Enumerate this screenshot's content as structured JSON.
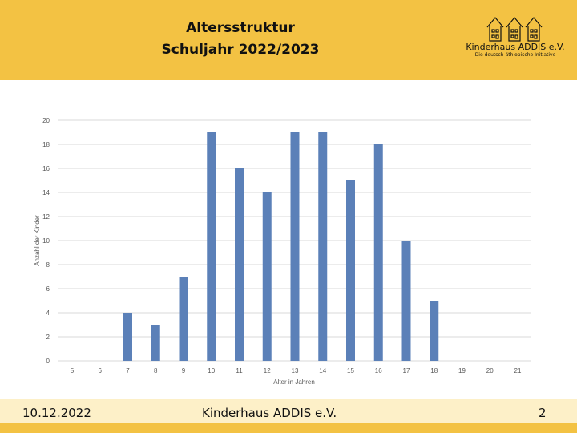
{
  "slide": {
    "title_line1": "Altersstruktur",
    "title_line2": "Schuljahr 2022/2023",
    "date": "10.12.2022",
    "footer_text": "Kinderhaus ADDIS e.V.",
    "page_number": "2"
  },
  "logo": {
    "name": "Kinderhaus ADDIS e.V.",
    "tagline": "Die deutsch-äthiopische Initiative"
  },
  "colors": {
    "bar": "#5b80b8",
    "header": "#f3c243"
  },
  "chart_data": {
    "type": "bar",
    "title": "",
    "xlabel": "Alter in Jahren",
    "ylabel": "Anzahl der Kinder",
    "categories": [
      "5",
      "6",
      "7",
      "8",
      "9",
      "10",
      "11",
      "12",
      "13",
      "14",
      "15",
      "16",
      "17",
      "18",
      "19",
      "20",
      "21"
    ],
    "values": [
      0,
      0,
      4,
      3,
      7,
      19,
      16,
      14,
      19,
      19,
      15,
      18,
      10,
      5,
      0,
      0,
      0
    ],
    "ylim": [
      0,
      20
    ],
    "yticks": [
      0,
      2,
      4,
      6,
      8,
      10,
      12,
      14,
      16,
      18,
      20
    ],
    "grid": true,
    "legend": "none"
  }
}
